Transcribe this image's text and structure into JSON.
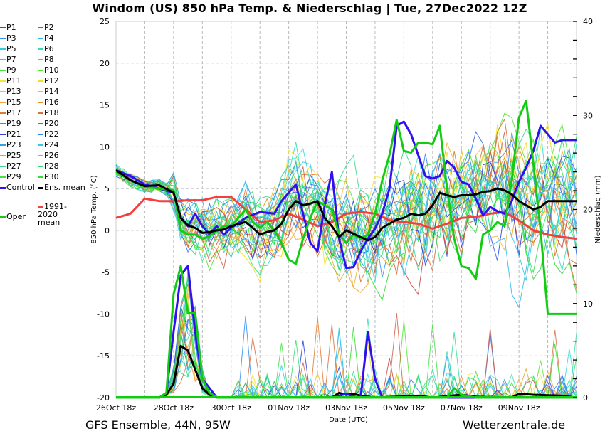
{
  "title": "Windom  (US)  850 hPa Temp. & Niederschlag | Tue, 27Dec2022 12Z",
  "footer": {
    "left": "GFS Ensemble, 44N, 95W",
    "right": "Wetterzentrale.de"
  },
  "legend": {
    "items": [
      {
        "label": "P1",
        "color": "#2a52e8"
      },
      {
        "label": "P2",
        "color": "#2f6ee8"
      },
      {
        "label": "P3",
        "color": "#2f8ef0"
      },
      {
        "label": "P4",
        "color": "#33bbf0"
      },
      {
        "label": "P5",
        "color": "#33cce8"
      },
      {
        "label": "P6",
        "color": "#33dcb4"
      },
      {
        "label": "P7",
        "color": "#33d88c"
      },
      {
        "label": "P8",
        "color": "#33dd66"
      },
      {
        "label": "P9",
        "color": "#44e044"
      },
      {
        "label": "P10",
        "color": "#55e633"
      },
      {
        "label": "P11",
        "color": "#f0e633"
      },
      {
        "label": "P12",
        "color": "#f5dd22"
      },
      {
        "label": "P13",
        "color": "#f0c033"
      },
      {
        "label": "P14",
        "color": "#f0b433"
      },
      {
        "label": "P15",
        "color": "#f0a433"
      },
      {
        "label": "P16",
        "color": "#e8902f"
      },
      {
        "label": "P17",
        "color": "#e07a33"
      },
      {
        "label": "P18",
        "color": "#d8703f"
      },
      {
        "label": "P19",
        "color": "#d0604a"
      },
      {
        "label": "P20",
        "color": "#c84848"
      },
      {
        "label": "P21",
        "color": "#2a40e0"
      },
      {
        "label": "P22",
        "color": "#3080f0"
      },
      {
        "label": "P23",
        "color": "#33a0e8"
      },
      {
        "label": "P24",
        "color": "#33c8f0"
      },
      {
        "label": "P25",
        "color": "#33dcdc"
      },
      {
        "label": "P26",
        "color": "#33e0b4"
      },
      {
        "label": "P27",
        "color": "#33dc90"
      },
      {
        "label": "P28",
        "color": "#33e070"
      },
      {
        "label": "P29",
        "color": "#44e044"
      },
      {
        "label": "P30",
        "color": "#33dd33"
      },
      {
        "label": "Control",
        "color": "#3010f0"
      },
      {
        "label": "Ens. mean",
        "color": "#000000"
      },
      {
        "label": "1991-2020 mean",
        "color": "#f04040"
      },
      {
        "label": "Oper",
        "color": "#11cc11"
      }
    ]
  },
  "chart_data": {
    "type": "line",
    "title": "Windom  (US)  850 hPa Temp. & Niederschlag | Tue, 27Dec2022 12Z",
    "xlabel": "Date (UTC)",
    "ylabel": "850 hPa Temp. (°C)",
    "y2label": "Niederschlag (mm)",
    "x_ticks": [
      "26Oct 18z",
      "28Oct 18z",
      "30Oct 18z",
      "01Nov 18z",
      "03Nov 18z",
      "05Nov 18z",
      "07Nov 18z",
      "09Nov 18z"
    ],
    "x_unit": "hours since 26Oct 18z",
    "xlim": [
      0,
      384
    ],
    "y_ticks": [
      25,
      20,
      15,
      10,
      5,
      0,
      -5,
      -10,
      -15,
      -20
    ],
    "ylim": [
      -20,
      25
    ],
    "y2_ticks": [
      40,
      30,
      20,
      10,
      0
    ],
    "y2lim": [
      0,
      40
    ],
    "grid": true,
    "legend_placement": "left",
    "series": [
      {
        "name": "Control",
        "axis": "temp",
        "x": [
          0,
          12,
          24,
          36,
          48,
          54,
          60,
          66,
          72,
          78,
          84,
          90,
          96,
          108,
          120,
          132,
          138,
          144,
          150,
          156,
          162,
          168,
          174,
          180,
          186,
          192,
          198,
          204,
          210,
          216,
          222,
          228,
          234,
          240,
          246,
          252,
          258,
          264,
          270,
          276,
          282,
          288,
          294,
          300,
          306,
          312,
          318,
          324,
          330,
          336,
          342,
          348,
          354,
          360,
          366,
          372,
          378,
          384
        ],
        "values": [
          7.2,
          6.5,
          5.5,
          5.0,
          4.5,
          1.5,
          0.5,
          2.0,
          0.5,
          -0.5,
          0.5,
          -0.5,
          0.3,
          1.5,
          2.2,
          2.0,
          3.5,
          4.5,
          5.5,
          2.0,
          -1.5,
          -2.5,
          3.0,
          7.0,
          -1.0,
          -4.5,
          -4.4,
          -2.5,
          -1.0,
          0.2,
          2.0,
          5.0,
          12.5,
          13.0,
          11.5,
          9.0,
          6.5,
          6.2,
          6.5,
          8.3,
          7.5,
          5.8,
          5.5,
          3.8,
          1.8,
          2.8,
          2.3,
          2.0,
          3.5,
          5.8,
          7.5,
          9.5,
          12.5,
          11.5,
          10.5,
          10.8,
          10.8,
          10.8
        ]
      },
      {
        "name": "Oper",
        "axis": "temp",
        "x": [
          0,
          12,
          24,
          36,
          48,
          54,
          60,
          66,
          72,
          78,
          84,
          90,
          96,
          108,
          114,
          120,
          126,
          132,
          138,
          144,
          150,
          156,
          162,
          168,
          174,
          180,
          186,
          192,
          198,
          204,
          210,
          216,
          222,
          228,
          234,
          240,
          246,
          252,
          258,
          264,
          270,
          276,
          282,
          288,
          294,
          300,
          306,
          312,
          318,
          324,
          330,
          336,
          342,
          348,
          354,
          360,
          366,
          372,
          378,
          384
        ],
        "values": [
          7.0,
          6.0,
          5.2,
          5.0,
          4.8,
          0.0,
          -0.5,
          -0.5,
          -1.0,
          -0.7,
          0.0,
          0.5,
          0.5,
          2.5,
          1.0,
          0.3,
          1.0,
          0.0,
          -1.5,
          -3.5,
          -4.0,
          -1.0,
          1.5,
          3.5,
          3.0,
          2.5,
          -0.5,
          -1.5,
          -0.5,
          -1.0,
          -0.5,
          2.0,
          6.0,
          9.0,
          13.2,
          9.5,
          9.3,
          10.5,
          10.5,
          10.3,
          12.5,
          5.0,
          -1.0,
          -4.3,
          -4.5,
          -5.8,
          -0.5,
          0.0,
          1.0,
          0.5,
          6.0,
          13.5,
          15.5,
          8.0,
          0.0,
          -10.0,
          -10.0,
          -10.0,
          -10.0,
          -10.0
        ]
      },
      {
        "name": "Ens. mean",
        "axis": "temp",
        "x": [
          0,
          12,
          24,
          36,
          48,
          54,
          60,
          66,
          72,
          78,
          84,
          90,
          96,
          108,
          114,
          120,
          126,
          132,
          138,
          144,
          150,
          156,
          162,
          168,
          174,
          180,
          186,
          192,
          198,
          204,
          210,
          216,
          222,
          228,
          234,
          240,
          246,
          252,
          258,
          264,
          270,
          276,
          282,
          288,
          294,
          300,
          306,
          312,
          318,
          324,
          330,
          336,
          342,
          348,
          354,
          360,
          366,
          372,
          378,
          384
        ],
        "values": [
          7.2,
          6.0,
          5.3,
          5.4,
          4.5,
          1.5,
          0.6,
          0.3,
          -0.3,
          -0.2,
          0.0,
          0.1,
          0.5,
          1.0,
          0.3,
          -0.5,
          -0.2,
          0.0,
          0.8,
          2.5,
          3.5,
          3.0,
          3.2,
          3.5,
          1.5,
          0.5,
          -0.8,
          0.0,
          -0.4,
          -0.8,
          -1.2,
          -0.8,
          0.3,
          0.8,
          1.3,
          1.5,
          2.0,
          1.8,
          2.0,
          3.0,
          4.5,
          4.2,
          4.0,
          4.2,
          4.2,
          4.3,
          4.6,
          4.7,
          5.0,
          4.8,
          4.3,
          3.5,
          3.0,
          2.5,
          2.8,
          3.5,
          3.5,
          3.5,
          3.5,
          3.5
        ]
      },
      {
        "name": "1991-2020 mean",
        "axis": "temp",
        "x": [
          0,
          12,
          24,
          36,
          48,
          60,
          72,
          84,
          96,
          108,
          120,
          132,
          144,
          156,
          168,
          180,
          192,
          204,
          216,
          228,
          240,
          252,
          264,
          276,
          288,
          300,
          312,
          324,
          336,
          348,
          360,
          372,
          384
        ],
        "values": [
          1.5,
          2.0,
          3.8,
          3.5,
          3.5,
          3.6,
          3.6,
          4.0,
          4.0,
          2.5,
          1.0,
          1.2,
          2.0,
          1.3,
          0.5,
          1.0,
          2.0,
          2.2,
          2.0,
          1.2,
          1.0,
          0.8,
          0.2,
          0.8,
          1.5,
          1.6,
          2.0,
          2.2,
          1.2,
          0.0,
          -0.5,
          -0.8,
          -1.0
        ]
      },
      {
        "name": "Control precip",
        "axis": "precip",
        "x": [
          0,
          36,
          42,
          48,
          54,
          60,
          66,
          72,
          84,
          96,
          180,
          186,
          192,
          198,
          204,
          210,
          216,
          222,
          228,
          240,
          300,
          384
        ],
        "values": [
          0,
          0,
          0.5,
          7,
          13,
          14,
          7,
          2,
          0,
          0,
          0,
          0.2,
          0.4,
          0.1,
          0,
          7,
          2,
          0,
          0,
          0,
          0,
          0
        ]
      },
      {
        "name": "Oper precip",
        "axis": "precip",
        "x": [
          0,
          36,
          42,
          48,
          54,
          60,
          66,
          72,
          78,
          84,
          96,
          240,
          276,
          282,
          288,
          300,
          384
        ],
        "values": [
          0,
          0,
          0.5,
          11,
          14,
          9,
          9,
          2,
          0.5,
          0,
          0,
          0,
          0,
          1,
          0.3,
          0,
          0
        ]
      },
      {
        "name": "Ens. mean precip",
        "axis": "precip",
        "x": [
          0,
          36,
          42,
          48,
          54,
          60,
          66,
          72,
          78,
          84,
          96,
          180,
          186,
          192,
          198,
          204,
          216,
          252,
          264,
          288,
          300,
          330,
          336,
          348,
          372,
          384
        ],
        "values": [
          0,
          0,
          0.3,
          1.5,
          5.5,
          5.0,
          3,
          1,
          0.3,
          0,
          0,
          0,
          0.5,
          0.3,
          0.4,
          0.2,
          0,
          0.2,
          0,
          0.3,
          0.1,
          0,
          0.4,
          0.3,
          0.2,
          0
        ]
      }
    ]
  }
}
